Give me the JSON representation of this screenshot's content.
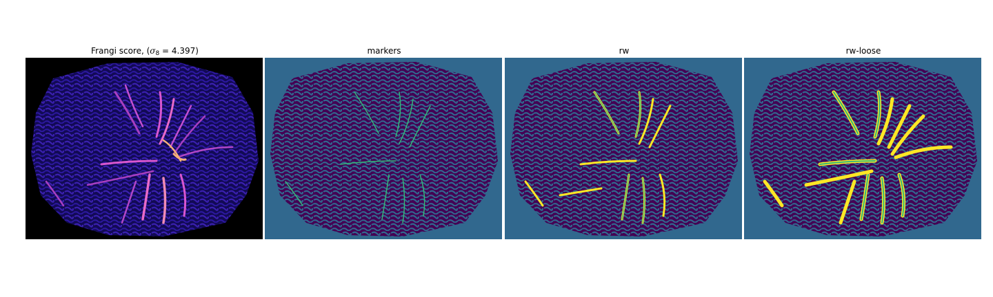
{
  "panels": [
    {
      "id": "frangi",
      "title_prefix": "Frangi score, (",
      "title_symbol": "σ",
      "title_subscript": "8",
      "title_equals": " = 4.397)",
      "colormap": "magma"
    },
    {
      "id": "markers",
      "title": "markers",
      "colormap": "viridis"
    },
    {
      "id": "rw",
      "title": "rw",
      "colormap": "viridis"
    },
    {
      "id": "rw-loose",
      "title": "rw-loose",
      "colormap": "viridis"
    }
  ],
  "colors": {
    "frangi_background": "#000000",
    "frangi_texture": "#2a0f8a",
    "frangi_vessel_bright": "#e05fd0",
    "frangi_vessel_peak": "#f6b07a",
    "label_background": "#31688e",
    "label_tissue": "#440154",
    "label_marker": "#35b779",
    "label_vessel": "#fde725"
  }
}
